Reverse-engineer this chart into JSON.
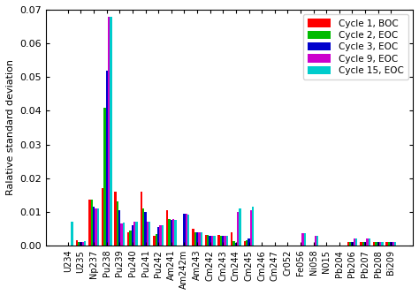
{
  "categories": [
    "U234",
    "U235",
    "Np237",
    "Pu238",
    "Pu239",
    "Pu240",
    "Pu241",
    "Pu242",
    "Am241",
    "Am242m",
    "Am243",
    "Cm242",
    "Cm243",
    "Cm244",
    "Cm245",
    "Cm246",
    "Cm247",
    "Cr052",
    "Fe056",
    "Ni058",
    "N015",
    "Pb204",
    "Pb206",
    "Pb207",
    "Pb208",
    "Bi209"
  ],
  "series": [
    {
      "label": "Cycle 1, BOC",
      "color": "#ff0000",
      "values": [
        0.0,
        0.0015,
        0.0135,
        0.017,
        0.016,
        0.004,
        0.016,
        0.003,
        0.0105,
        0.0,
        0.005,
        0.0032,
        0.0032,
        0.004,
        0.0012,
        0.0,
        0.0,
        0.0,
        0.0,
        0.0,
        0.0,
        0.0,
        0.001,
        0.001,
        0.001,
        0.001
      ]
    },
    {
      "label": "Cycle 2, EOC",
      "color": "#00bb00",
      "values": [
        0.0,
        0.001,
        0.0135,
        0.041,
        0.013,
        0.0045,
        0.011,
        0.0035,
        0.0078,
        0.0,
        0.004,
        0.0032,
        0.003,
        0.0012,
        0.0015,
        0.0,
        0.0,
        0.0,
        0.0,
        0.0,
        0.0,
        0.0,
        0.001,
        0.001,
        0.001,
        0.001
      ]
    },
    {
      "label": "Cycle 3, EOC",
      "color": "#0000cc",
      "values": [
        0.0,
        0.001,
        0.0115,
        0.052,
        0.0105,
        0.006,
        0.01,
        0.0055,
        0.0075,
        0.0095,
        0.004,
        0.003,
        0.0028,
        0.0008,
        0.002,
        0.0,
        0.0,
        0.0,
        0.0,
        0.0,
        0.0,
        0.0,
        0.001,
        0.001,
        0.001,
        0.001
      ]
    },
    {
      "label": "Cycle 9, EOC",
      "color": "#cc00cc",
      "values": [
        0.0,
        0.001,
        0.011,
        0.068,
        0.0065,
        0.007,
        0.007,
        0.006,
        0.0078,
        0.0095,
        0.004,
        0.003,
        0.003,
        0.01,
        0.0105,
        0.0,
        0.0,
        0.0,
        0.0037,
        0.003,
        0.0,
        0.0,
        0.002,
        0.002,
        0.001,
        0.001
      ]
    },
    {
      "label": "Cycle 15, EOC",
      "color": "#00cccc",
      "values": [
        0.007,
        0.0012,
        0.011,
        0.068,
        0.0068,
        0.007,
        0.007,
        0.006,
        0.0075,
        0.0092,
        0.004,
        0.003,
        0.003,
        0.011,
        0.0115,
        0.0,
        0.0,
        0.0,
        0.0037,
        0.003,
        0.0,
        0.0,
        0.002,
        0.002,
        0.001,
        0.001
      ]
    }
  ],
  "ylabel": "Ralative standard deviation",
  "ylim": [
    0,
    0.07
  ],
  "yticks": [
    0.0,
    0.01,
    0.02,
    0.03,
    0.04,
    0.05,
    0.06,
    0.07
  ],
  "legend_loc": "upper right",
  "background_color": "#ffffff"
}
